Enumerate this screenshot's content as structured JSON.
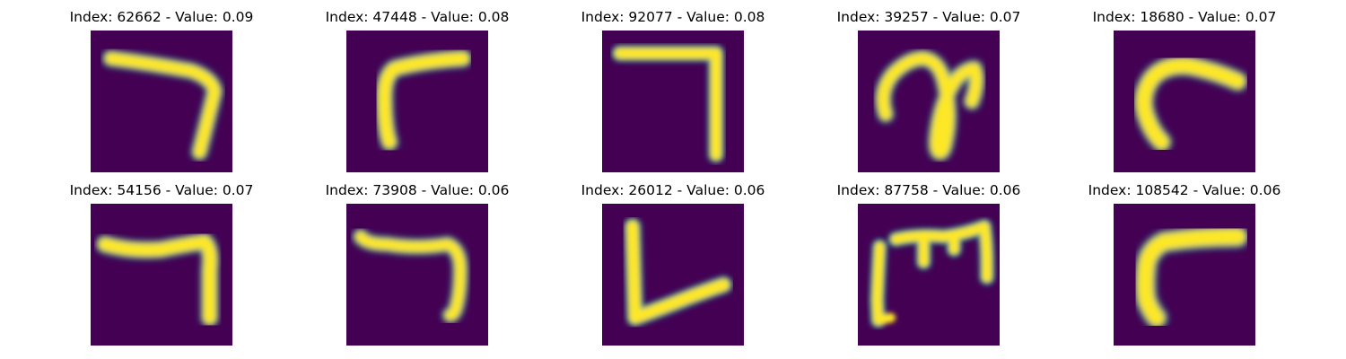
{
  "colors": {
    "background": "#440154",
    "mid_dark": "#3b528b",
    "mid": "#21918c",
    "mid_light": "#5ec962",
    "foreground": "#fde725"
  },
  "panels": [
    {
      "title": "Index: 62662 - Value: 0.09",
      "index": "62662",
      "value": "0.09"
    },
    {
      "title": "Index: 47448 - Value: 0.08",
      "index": "47448",
      "value": "0.08"
    },
    {
      "title": "Index: 92077 - Value: 0.08",
      "index": "92077",
      "value": "0.08"
    },
    {
      "title": "Index: 39257 - Value: 0.07",
      "index": "39257",
      "value": "0.07"
    },
    {
      "title": "Index: 18680 - Value: 0.07",
      "index": "18680",
      "value": "0.07"
    },
    {
      "title": "Index: 54156 - Value: 0.07",
      "index": "54156",
      "value": "0.07"
    },
    {
      "title": "Index: 73908 - Value: 0.06",
      "index": "73908",
      "value": "0.06"
    },
    {
      "title": "Index: 26012 - Value: 0.06",
      "index": "26012",
      "value": "0.06"
    },
    {
      "title": "Index: 87758 - Value: 0.06",
      "index": "87758",
      "value": "0.06"
    },
    {
      "title": "Index: 108542 - Value: 0.06",
      "index": "108542",
      "value": "0.06"
    }
  ]
}
